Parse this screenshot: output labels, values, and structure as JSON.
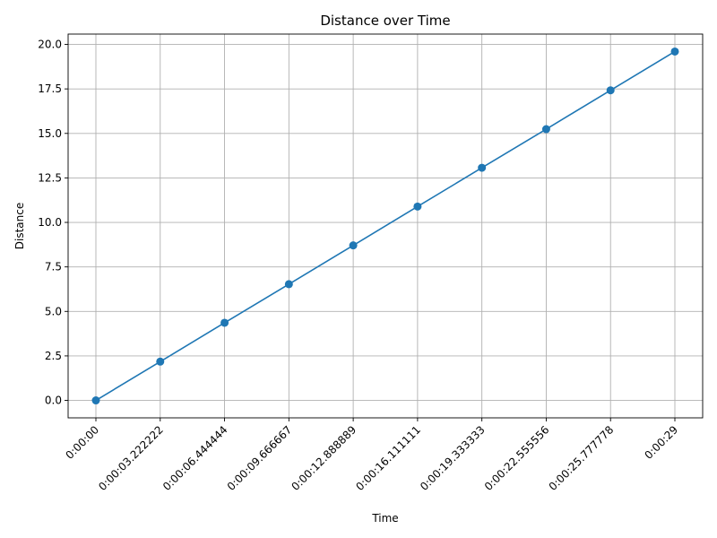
{
  "chart_data": {
    "type": "line",
    "title": "Distance over Time",
    "xlabel": "Time",
    "ylabel": "Distance",
    "x": [
      "0:00:00",
      "0:00:03.222222",
      "0:00:06.444444",
      "0:00:09.666667",
      "0:00:12.888889",
      "0:00:16.111111",
      "0:00:19.333333",
      "0:00:22.555556",
      "0:00:25.777778",
      "0:00:29"
    ],
    "x_tick_labels": [
      "0:00:00",
      "0:00:03.222222",
      "0:00:06.444444",
      "0:00:09.666667",
      "0:00:12.888889",
      "0:00:16.111111",
      "0:00:19.333333",
      "0:00:22.555556",
      "0:00:25.777778",
      "0:00:29"
    ],
    "series": [
      {
        "values": [
          0.0,
          2.18,
          4.36,
          6.53,
          8.71,
          10.89,
          13.07,
          15.24,
          17.42,
          19.6
        ],
        "color": "#1f77b4",
        "marker": "circle"
      }
    ],
    "ylim": [
      -0.98,
      20.58
    ],
    "y_ticks": [
      0.0,
      2.5,
      5.0,
      7.5,
      10.0,
      12.5,
      15.0,
      17.5,
      20.0
    ],
    "y_tick_labels": [
      "0.0",
      "2.5",
      "5.0",
      "7.5",
      "10.0",
      "12.5",
      "15.0",
      "17.5",
      "20.0"
    ],
    "grid": true,
    "legend": false
  }
}
